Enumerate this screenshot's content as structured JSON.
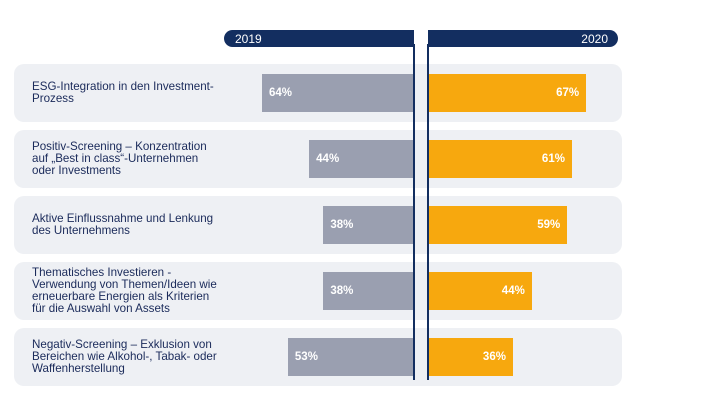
{
  "chart_data": {
    "type": "bar",
    "orientation": "horizontal-butterfly",
    "title": "",
    "xlabel": "",
    "ylabel": "",
    "categories": [
      "ESG-Integration in den Investment-\nProzess",
      "Positiv-Screening – Konzentration\nauf „Best in class“-Unternehmen\noder Investments",
      "Aktive Einflussnahme und Lenkung\ndes Unternehmens",
      "Thematisches Investieren -\nVerwendung von Themen/Ideen wie\nerneuerbare Energien als Kriterien\nfür die Auswahl von Assets",
      "Negativ-Screening – Exklusion von\nBereichen wie Alkohol-, Tabak- oder\nWaffenherstellung"
    ],
    "series": [
      {
        "name": "2019",
        "values": [
          64,
          44,
          38,
          38,
          53
        ],
        "labels": [
          "64%",
          "44%",
          "38%",
          "38%",
          "53%"
        ],
        "color": "#9a9fb0"
      },
      {
        "name": "2020",
        "values": [
          67,
          61,
          59,
          44,
          36
        ],
        "labels": [
          "67%",
          "61%",
          "59%",
          "44%",
          "36%"
        ],
        "color": "#f7a80e"
      }
    ],
    "legend_color": "#132e60",
    "row_background": "#eef0f4"
  }
}
